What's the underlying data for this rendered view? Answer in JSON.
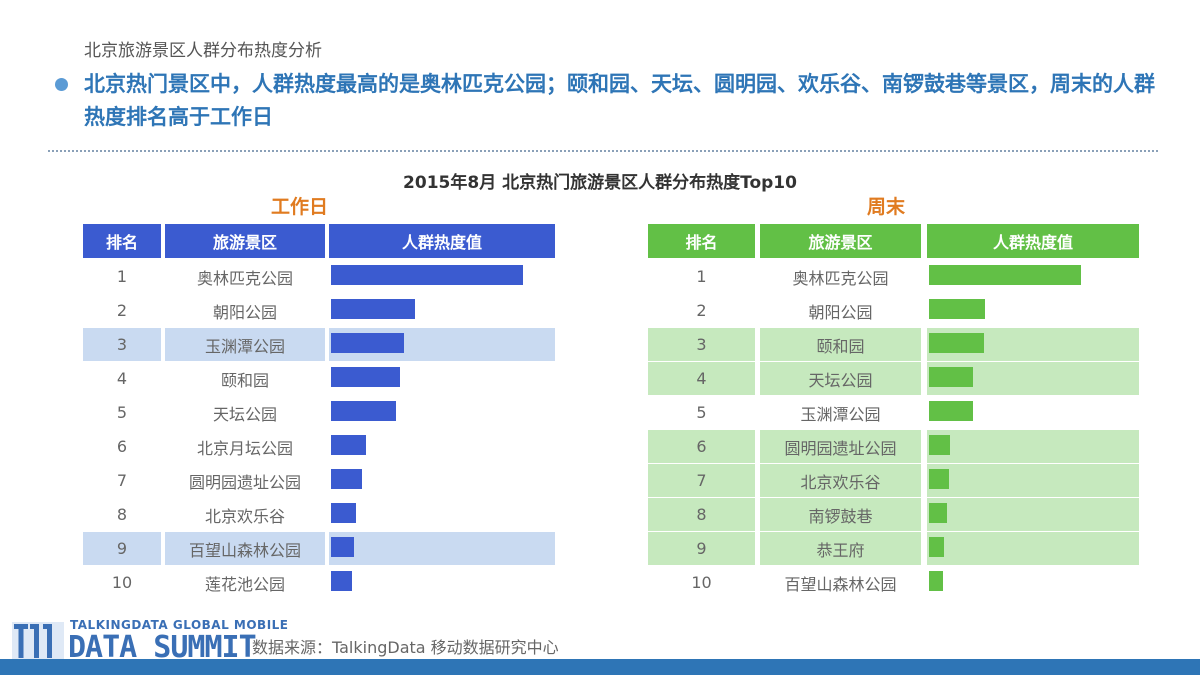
{
  "subtitle": "北京旅游景区人群分布热度分析",
  "headline": "北京热门景区中，人群热度最高的是奥林匹克公园；颐和园、天坛、圆明园、欢乐谷、南锣鼓巷等景区，周末的人群热度排名高于工作日",
  "chart_data": {
    "type": "table",
    "title": "2015年8月  北京热门旅游景区人群分布热度Top10",
    "columns": [
      "排名",
      "旅游景区",
      "人群热度值"
    ],
    "panels": [
      {
        "label": "工作日",
        "color": "#3b5bd0",
        "header_color": "#3b5bd0",
        "highlight_color": "#c9daf1",
        "rows": [
          {
            "rank": "1",
            "name": "奥林匹克公园",
            "value": 100,
            "highlight": false
          },
          {
            "rank": "2",
            "name": "朝阳公园",
            "value": 44,
            "highlight": false
          },
          {
            "rank": "3",
            "name": "玉渊潭公园",
            "value": 38,
            "highlight": true
          },
          {
            "rank": "4",
            "name": "颐和园",
            "value": 36,
            "highlight": false
          },
          {
            "rank": "5",
            "name": "天坛公园",
            "value": 34,
            "highlight": false
          },
          {
            "rank": "6",
            "name": "北京月坛公园",
            "value": 18,
            "highlight": false
          },
          {
            "rank": "7",
            "name": "圆明园遗址公园",
            "value": 16,
            "highlight": false
          },
          {
            "rank": "8",
            "name": "北京欢乐谷",
            "value": 13,
            "highlight": false
          },
          {
            "rank": "9",
            "name": "百望山森林公园",
            "value": 12,
            "highlight": true
          },
          {
            "rank": "10",
            "name": "莲花池公园",
            "value": 11,
            "highlight": false
          }
        ]
      },
      {
        "label": "周末",
        "color": "#62c046",
        "header_color": "#62c046",
        "highlight_color": "#c6e9be",
        "rows": [
          {
            "rank": "1",
            "name": "奥林匹克公园",
            "value": 100,
            "highlight": false
          },
          {
            "rank": "2",
            "name": "朝阳公园",
            "value": 37,
            "highlight": false
          },
          {
            "rank": "3",
            "name": "颐和园",
            "value": 36,
            "highlight": true
          },
          {
            "rank": "4",
            "name": "天坛公园",
            "value": 29,
            "highlight": true
          },
          {
            "rank": "5",
            "name": "玉渊潭公园",
            "value": 29,
            "highlight": false
          },
          {
            "rank": "6",
            "name": "圆明园遗址公园",
            "value": 14,
            "highlight": true
          },
          {
            "rank": "7",
            "name": "北京欢乐谷",
            "value": 13,
            "highlight": true
          },
          {
            "rank": "8",
            "name": "南锣鼓巷",
            "value": 12,
            "highlight": true
          },
          {
            "rank": "9",
            "name": "恭王府",
            "value": 10,
            "highlight": true
          },
          {
            "rank": "10",
            "name": "百望山森林公园",
            "value": 9,
            "highlight": false
          }
        ]
      }
    ]
  },
  "logo": {
    "top": "TALKINGDATA GLOBAL MOBILE",
    "main": "DATA SUMMIT",
    "badge": "T11"
  },
  "source": "数据来源：TalkingData 移动数据研究中心",
  "colors": {
    "accent": "#2e75b6",
    "label": "#e07b20"
  }
}
